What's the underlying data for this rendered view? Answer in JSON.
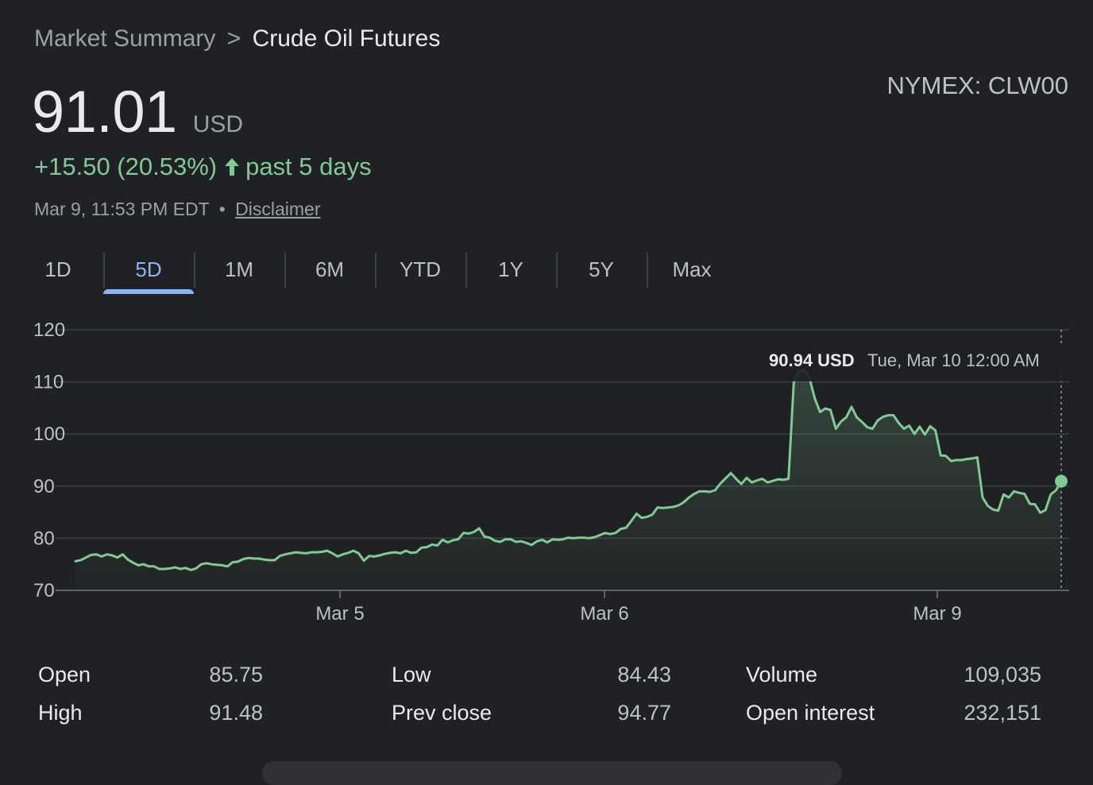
{
  "breadcrumb": {
    "root": "Market Summary",
    "separator": ">",
    "current": "Crude Oil Futures"
  },
  "ticker": "NYMEX: CLW00",
  "price": {
    "value": "91.01",
    "currency": "USD"
  },
  "change": {
    "text": "+15.50 (20.53%)",
    "period": "past 5 days",
    "direction": "up"
  },
  "timestamp": {
    "text": "Mar 9, 11:53 PM EDT",
    "separator": "•",
    "disclaimer": "Disclaimer"
  },
  "tabs": [
    {
      "label": "1D",
      "active": false
    },
    {
      "label": "5D",
      "active": true
    },
    {
      "label": "1M",
      "active": false
    },
    {
      "label": "6M",
      "active": false
    },
    {
      "label": "YTD",
      "active": false
    },
    {
      "label": "1Y",
      "active": false
    },
    {
      "label": "5Y",
      "active": false
    },
    {
      "label": "Max",
      "active": false
    }
  ],
  "tooltip": {
    "value": "90.94 USD",
    "time": "Tue, Mar 10 12:00 AM"
  },
  "stats": [
    {
      "label": "Open",
      "value": "85.75"
    },
    {
      "label": "High",
      "value": "91.48"
    },
    {
      "label": "Low",
      "value": "84.43"
    },
    {
      "label": "Prev close",
      "value": "94.77"
    },
    {
      "label": "Volume",
      "value": "109,035"
    },
    {
      "label": "Open interest",
      "value": "232,151"
    }
  ],
  "colors": {
    "line": "#81c995",
    "accent": "#8ab4f8",
    "background": "#202124",
    "grid": "#3c4043"
  },
  "icons": {
    "change_arrow": "arrow-up-icon"
  },
  "chart_data": {
    "type": "area",
    "ylim": [
      70,
      120
    ],
    "yticks": [
      70,
      80,
      90,
      100,
      110,
      120
    ],
    "xticks": [
      "Mar 5",
      "Mar 6",
      "Mar 9"
    ],
    "grid": true,
    "series": [
      {
        "values": [
          75.6,
          75.8,
          76.3,
          76.8,
          76.9,
          76.5,
          76.9,
          76.7,
          76.3,
          76.9,
          75.9,
          75.3,
          74.8,
          75.0,
          74.6,
          74.6,
          74.1,
          74.1,
          74.2,
          74.4,
          74.1,
          74.3,
          73.9,
          74.2,
          75.0,
          75.2,
          75.0,
          74.9,
          74.8,
          74.6,
          75.4,
          75.5,
          76.0,
          76.2,
          76.1,
          76.1,
          75.9,
          75.8,
          75.8,
          76.6,
          76.9,
          77.1,
          77.3,
          77.2,
          77.1,
          77.3,
          77.3,
          77.4,
          77.6,
          77.1,
          76.5,
          76.9,
          77.2,
          77.6,
          77.1,
          75.7,
          76.6,
          76.5,
          76.7,
          77.0,
          77.2,
          77.3,
          77.1,
          77.6,
          77.2,
          77.3,
          78.2,
          78.3,
          78.8,
          78.6,
          79.7,
          79.2,
          79.6,
          79.8,
          81.0,
          80.9,
          81.2,
          81.9,
          80.3,
          80.1,
          79.5,
          79.3,
          79.8,
          79.8,
          79.3,
          79.4,
          79.1,
          78.7,
          79.4,
          79.7,
          79.2,
          79.8,
          79.7,
          79.8,
          80.1,
          80.0,
          80.1,
          80.1,
          80.0,
          80.2,
          80.6,
          81.0,
          80.8,
          81.0,
          81.8,
          82.0,
          83.3,
          84.7,
          83.9,
          84.1,
          84.5,
          85.9,
          85.8,
          85.9,
          86.0,
          86.3,
          86.9,
          87.8,
          88.5,
          89.0,
          89.0,
          88.9,
          89.2,
          90.5,
          91.5,
          92.5,
          91.4,
          90.4,
          91.6,
          90.7,
          91.1,
          91.4,
          90.7,
          91.0,
          91.3,
          91.2,
          91.4,
          109.9,
          111.9,
          112.3,
          110.7,
          106.8,
          104.2,
          104.9,
          104.6,
          101.0,
          102.4,
          103.2,
          105.2,
          103.2,
          102.3,
          101.3,
          101.0,
          102.6,
          103.3,
          103.6,
          103.6,
          102.1,
          101.0,
          101.6,
          100.0,
          101.4,
          99.9,
          101.5,
          100.7,
          95.9,
          95.8,
          94.8,
          95.0,
          95.0,
          95.2,
          95.3,
          95.5,
          87.8,
          86.2,
          85.5,
          85.3,
          88.4,
          87.8,
          89.0,
          88.7,
          88.5,
          86.6,
          86.5,
          84.9,
          85.4,
          88.4,
          89.2,
          90.94
        ]
      }
    ]
  }
}
